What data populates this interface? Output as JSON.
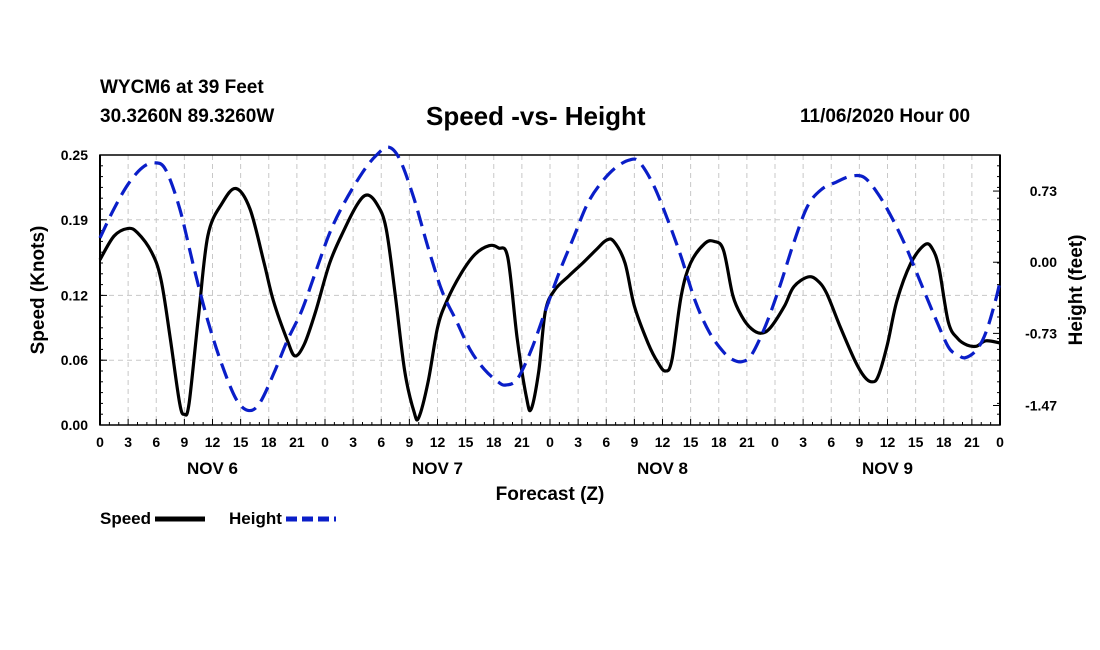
{
  "header": {
    "station": "WYCM6 at 39 Feet",
    "coords": "30.3260N 89.3260W",
    "title": "Speed -vs- Height",
    "date": "11/06/2020 Hour 00"
  },
  "chart_data": {
    "type": "line",
    "title": "Speed -vs- Height",
    "xlabel": "Forecast (Z)",
    "ylabel": "Speed (Knots)",
    "y2label": "Height (feet)",
    "xlim": [
      0,
      96
    ],
    "ylim": [
      0,
      0.25
    ],
    "y2lim": [
      -1.67,
      1.1
    ],
    "grid": true,
    "x_ticks": [
      0,
      3,
      6,
      9,
      12,
      15,
      18,
      21,
      24,
      27,
      30,
      33,
      36,
      39,
      42,
      45,
      48,
      51,
      54,
      57,
      60,
      63,
      66,
      69,
      72,
      75,
      78,
      81,
      84,
      87,
      90,
      93,
      96
    ],
    "x_tick_labels": [
      "0",
      "3",
      "6",
      "9",
      "12",
      "15",
      "18",
      "21",
      "0",
      "3",
      "6",
      "9",
      "12",
      "15",
      "18",
      "21",
      "0",
      "3",
      "6",
      "9",
      "12",
      "15",
      "18",
      "21",
      "0",
      "3",
      "6",
      "9",
      "12",
      "15",
      "18",
      "21",
      "0"
    ],
    "day_labels": [
      {
        "x": 12,
        "label": "NOV 6"
      },
      {
        "x": 36,
        "label": "NOV 7"
      },
      {
        "x": 60,
        "label": "NOV 8"
      },
      {
        "x": 84,
        "label": "NOV 9"
      }
    ],
    "y_ticks": [
      0.0,
      0.06,
      0.12,
      0.19,
      0.25
    ],
    "y_tick_labels": [
      "0.00",
      "0.06",
      "0.12",
      "0.19",
      "0.25"
    ],
    "y2_ticks": [
      0.73,
      0.0,
      -0.73,
      -1.47
    ],
    "y2_tick_labels": [
      "0.73",
      "0.00",
      "-0.73",
      "-1.47"
    ],
    "series": [
      {
        "name": "Speed",
        "axis": "left",
        "color": "#000000",
        "dash": "solid",
        "points": [
          [
            0,
            0.153
          ],
          [
            1.5,
            0.175
          ],
          [
            3,
            0.182
          ],
          [
            4,
            0.178
          ],
          [
            5.5,
            0.16
          ],
          [
            6.5,
            0.135
          ],
          [
            7.5,
            0.08
          ],
          [
            8.5,
            0.02
          ],
          [
            9,
            0.01
          ],
          [
            9.5,
            0.02
          ],
          [
            10.5,
            0.1
          ],
          [
            11.5,
            0.175
          ],
          [
            13,
            0.205
          ],
          [
            14.5,
            0.219
          ],
          [
            16,
            0.2
          ],
          [
            17.5,
            0.15
          ],
          [
            18.5,
            0.115
          ],
          [
            20,
            0.078
          ],
          [
            20.8,
            0.064
          ],
          [
            21.8,
            0.075
          ],
          [
            23,
            0.105
          ],
          [
            24.5,
            0.15
          ],
          [
            26,
            0.18
          ],
          [
            27.5,
            0.205
          ],
          [
            28.5,
            0.213
          ],
          [
            29.5,
            0.205
          ],
          [
            30.5,
            0.183
          ],
          [
            31.5,
            0.12
          ],
          [
            32.5,
            0.05
          ],
          [
            33.5,
            0.012
          ],
          [
            34,
            0.007
          ],
          [
            35,
            0.04
          ],
          [
            36,
            0.09
          ],
          [
            37,
            0.115
          ],
          [
            38.5,
            0.14
          ],
          [
            40,
            0.158
          ],
          [
            41.5,
            0.166
          ],
          [
            42.5,
            0.164
          ],
          [
            43.5,
            0.155
          ],
          [
            44.5,
            0.08
          ],
          [
            45.5,
            0.025
          ],
          [
            46,
            0.015
          ],
          [
            46.8,
            0.05
          ],
          [
            47.5,
            0.105
          ],
          [
            48.5,
            0.125
          ],
          [
            50,
            0.138
          ],
          [
            51.5,
            0.15
          ],
          [
            53,
            0.163
          ],
          [
            54,
            0.171
          ],
          [
            54.8,
            0.17
          ],
          [
            56,
            0.15
          ],
          [
            57,
            0.11
          ],
          [
            58.5,
            0.075
          ],
          [
            59.5,
            0.058
          ],
          [
            60.3,
            0.05
          ],
          [
            61,
            0.06
          ],
          [
            62,
            0.12
          ],
          [
            63,
            0.15
          ],
          [
            64.5,
            0.168
          ],
          [
            65.5,
            0.17
          ],
          [
            66.5,
            0.162
          ],
          [
            67.5,
            0.12
          ],
          [
            68.5,
            0.1
          ],
          [
            69.5,
            0.089
          ],
          [
            70.5,
            0.085
          ],
          [
            71.5,
            0.09
          ],
          [
            73,
            0.11
          ],
          [
            74,
            0.128
          ],
          [
            75.5,
            0.137
          ],
          [
            76.5,
            0.134
          ],
          [
            77.5,
            0.122
          ],
          [
            79,
            0.09
          ],
          [
            80.5,
            0.06
          ],
          [
            81.5,
            0.045
          ],
          [
            82.3,
            0.04
          ],
          [
            83,
            0.045
          ],
          [
            84,
            0.075
          ],
          [
            85,
            0.115
          ],
          [
            86.5,
            0.15
          ],
          [
            88,
            0.167
          ],
          [
            88.8,
            0.163
          ],
          [
            89.5,
            0.145
          ],
          [
            90.5,
            0.095
          ],
          [
            91.5,
            0.08
          ],
          [
            92.5,
            0.074
          ],
          [
            93.5,
            0.073
          ],
          [
            94.5,
            0.078
          ],
          [
            96,
            0.076
          ]
        ]
      },
      {
        "name": "Height",
        "axis": "right",
        "color": "#0a1ec8",
        "dash": "dashed",
        "points": [
          [
            0,
            0.25
          ],
          [
            1.5,
            0.55
          ],
          [
            3,
            0.8
          ],
          [
            4.5,
            0.97
          ],
          [
            5.8,
            1.02
          ],
          [
            7,
            0.95
          ],
          [
            8.5,
            0.55
          ],
          [
            10,
            -0.05
          ],
          [
            11.5,
            -0.6
          ],
          [
            13,
            -1.05
          ],
          [
            14.5,
            -1.4
          ],
          [
            15.8,
            -1.52
          ],
          [
            17,
            -1.45
          ],
          [
            18.5,
            -1.15
          ],
          [
            20,
            -0.8
          ],
          [
            21.5,
            -0.5
          ],
          [
            23,
            -0.1
          ],
          [
            24.5,
            0.3
          ],
          [
            26,
            0.6
          ],
          [
            28,
            0.92
          ],
          [
            29.5,
            1.1
          ],
          [
            30.8,
            1.18
          ],
          [
            32,
            1.05
          ],
          [
            33.5,
            0.65
          ],
          [
            35,
            0.15
          ],
          [
            36.5,
            -0.3
          ],
          [
            38,
            -0.6
          ],
          [
            39.5,
            -0.9
          ],
          [
            41,
            -1.1
          ],
          [
            42.5,
            -1.23
          ],
          [
            43.3,
            -1.26
          ],
          [
            44.5,
            -1.2
          ],
          [
            46,
            -0.9
          ],
          [
            47.5,
            -0.5
          ],
          [
            49,
            -0.1
          ],
          [
            50.5,
            0.25
          ],
          [
            52,
            0.6
          ],
          [
            53.5,
            0.82
          ],
          [
            55,
            0.97
          ],
          [
            56.5,
            1.05
          ],
          [
            57.5,
            1.03
          ],
          [
            59,
            0.8
          ],
          [
            60.5,
            0.45
          ],
          [
            62,
            0.05
          ],
          [
            63.5,
            -0.4
          ],
          [
            65,
            -0.72
          ],
          [
            66.5,
            -0.92
          ],
          [
            67.5,
            -1.0
          ],
          [
            68.5,
            -1.02
          ],
          [
            69.5,
            -0.95
          ],
          [
            71,
            -0.65
          ],
          [
            72.5,
            -0.25
          ],
          [
            74,
            0.2
          ],
          [
            75.5,
            0.58
          ],
          [
            77,
            0.75
          ],
          [
            78.5,
            0.82
          ],
          [
            80,
            0.88
          ],
          [
            81.5,
            0.87
          ],
          [
            83,
            0.7
          ],
          [
            84.5,
            0.45
          ],
          [
            86,
            0.15
          ],
          [
            87.5,
            -0.2
          ],
          [
            89,
            -0.55
          ],
          [
            90.5,
            -0.87
          ],
          [
            91.5,
            -0.95
          ],
          [
            92.3,
            -0.98
          ],
          [
            93.5,
            -0.9
          ],
          [
            94.5,
            -0.72
          ],
          [
            95.5,
            -0.4
          ],
          [
            96,
            -0.2
          ]
        ]
      }
    ]
  },
  "legend": {
    "speed_label": "Speed",
    "height_label": "Height"
  }
}
